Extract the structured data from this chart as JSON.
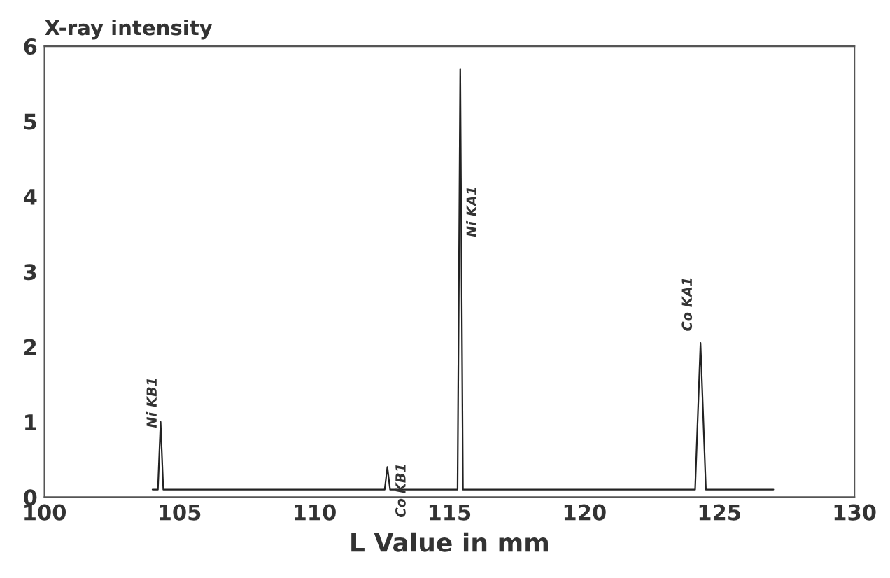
{
  "chart_data": {
    "type": "line",
    "ylabel": "X-ray intensity",
    "xlabel": "L Value in mm",
    "series": [
      {
        "color": "#222222",
        "x": [
          104.0,
          104.2,
          104.3,
          104.4,
          112.6,
          112.7,
          112.8,
          115.3,
          115.4,
          115.5,
          124.1,
          124.3,
          124.5,
          127.0
        ],
        "values": [
          0.1,
          0.1,
          1.0,
          0.1,
          0.1,
          0.4,
          0.1,
          0.1,
          5.7,
          0.1,
          0.1,
          2.05,
          0.1,
          0.1
        ]
      }
    ],
    "annotations": [
      {
        "text": "Ni KB1",
        "x": 104.3,
        "y": 1.0
      },
      {
        "text": "Co KB1",
        "x": 112.7,
        "y": 0.4
      },
      {
        "text": "Ni KA1",
        "x": 115.4,
        "y": 3.8
      },
      {
        "text": "Co KA1",
        "x": 124.3,
        "y": 2.05
      }
    ],
    "xlim": [
      100,
      130
    ],
    "xticks": [
      100,
      105,
      110,
      115,
      120,
      125,
      130
    ],
    "ylim": [
      0,
      6
    ],
    "yticks": [
      0,
      1,
      2,
      3,
      4,
      5,
      6
    ],
    "grid": false,
    "legend": false,
    "marker": "none",
    "line_style": "solid"
  }
}
